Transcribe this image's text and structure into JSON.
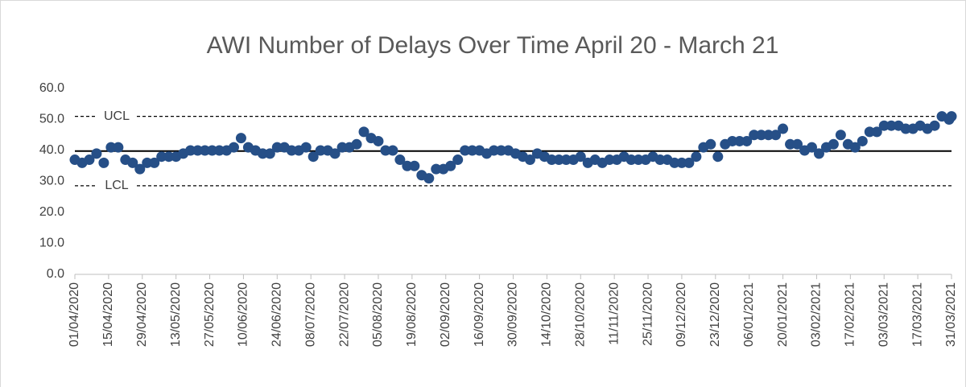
{
  "chart_data": {
    "type": "scatter",
    "title": "AWI Number of Delays Over Time April 20 - March 21",
    "color": "#264f87",
    "x": [
      "01/04/2020",
      "04/04/2020",
      "07/04/2020",
      "10/04/2020",
      "13/04/2020",
      "16/04/2020",
      "19/04/2020",
      "22/04/2020",
      "25/04/2020",
      "28/04/2020",
      "01/05/2020",
      "04/05/2020",
      "07/05/2020",
      "10/05/2020",
      "13/05/2020",
      "16/05/2020",
      "19/05/2020",
      "22/05/2020",
      "25/05/2020",
      "28/05/2020",
      "31/05/2020",
      "03/06/2020",
      "06/06/2020",
      "09/06/2020",
      "12/06/2020",
      "15/06/2020",
      "18/06/2020",
      "21/06/2020",
      "24/06/2020",
      "27/06/2020",
      "30/06/2020",
      "03/07/2020",
      "06/07/2020",
      "09/07/2020",
      "12/07/2020",
      "15/07/2020",
      "18/07/2020",
      "21/07/2020",
      "24/07/2020",
      "27/07/2020",
      "30/07/2020",
      "02/08/2020",
      "05/08/2020",
      "08/08/2020",
      "11/08/2020",
      "14/08/2020",
      "17/08/2020",
      "20/08/2020",
      "23/08/2020",
      "26/08/2020",
      "29/08/2020",
      "01/09/2020",
      "04/09/2020",
      "07/09/2020",
      "10/09/2020",
      "13/09/2020",
      "16/09/2020",
      "19/09/2020",
      "22/09/2020",
      "25/09/2020",
      "28/09/2020",
      "01/10/2020",
      "04/10/2020",
      "07/10/2020",
      "10/10/2020",
      "13/10/2020",
      "16/10/2020",
      "19/10/2020",
      "22/10/2020",
      "25/10/2020",
      "28/10/2020",
      "31/10/2020",
      "03/11/2020",
      "06/11/2020",
      "09/11/2020",
      "12/11/2020",
      "15/11/2020",
      "18/11/2020",
      "21/11/2020",
      "24/11/2020",
      "27/11/2020",
      "30/11/2020",
      "03/12/2020",
      "06/12/2020",
      "09/12/2020",
      "12/12/2020",
      "15/12/2020",
      "18/12/2020",
      "21/12/2020",
      "24/12/2020",
      "27/12/2020",
      "30/12/2020",
      "02/01/2021",
      "05/01/2021",
      "08/01/2021",
      "11/01/2021",
      "14/01/2021",
      "17/01/2021",
      "20/01/2021",
      "23/01/2021",
      "26/01/2021",
      "29/01/2021",
      "01/02/2021",
      "04/02/2021",
      "07/02/2021",
      "10/02/2021",
      "13/02/2021",
      "16/02/2021",
      "19/02/2021",
      "22/02/2021",
      "25/02/2021",
      "28/02/2021",
      "03/03/2021",
      "06/03/2021",
      "09/03/2021",
      "12/03/2021",
      "15/03/2021",
      "18/03/2021",
      "21/03/2021",
      "24/03/2021",
      "27/03/2021",
      "30/03/2021",
      "31/03/2021"
    ],
    "values": [
      37,
      36,
      37,
      39,
      36,
      41,
      41,
      37,
      36,
      34,
      36,
      36,
      38,
      38,
      38,
      39,
      40,
      40,
      40,
      40,
      40,
      40,
      41,
      44,
      41,
      40,
      39,
      39,
      41,
      41,
      40,
      40,
      41,
      38,
      40,
      40,
      39,
      41,
      41,
      42,
      46,
      44,
      43,
      40,
      40,
      37,
      35,
      35,
      32,
      31,
      34,
      34,
      35,
      37,
      40,
      40,
      40,
      39,
      40,
      40,
      40,
      39,
      38,
      37,
      39,
      38,
      37,
      37,
      37,
      37,
      38,
      36,
      37,
      36,
      37,
      37,
      38,
      37,
      37,
      37,
      38,
      37,
      37,
      36,
      36,
      36,
      38,
      41,
      42,
      38,
      42,
      43,
      43,
      43,
      45,
      45,
      45,
      45,
      47,
      42,
      42,
      40,
      41,
      39,
      41,
      42,
      45,
      42,
      41,
      43,
      46,
      46,
      48,
      48,
      48,
      47,
      47,
      48,
      47,
      48,
      51,
      50,
      51
    ],
    "xlim": [
      "01/04/2020",
      "31/03/2021"
    ],
    "xticks": [
      "01/04/2020",
      "15/04/2020",
      "29/04/2020",
      "13/05/2020",
      "27/05/2020",
      "10/06/2020",
      "24/06/2020",
      "08/07/2020",
      "22/07/2020",
      "05/08/2020",
      "19/08/2020",
      "02/09/2020",
      "16/09/2020",
      "30/09/2020",
      "14/10/2020",
      "28/10/2020",
      "11/11/2020",
      "25/11/2020",
      "09/12/2020",
      "23/12/2020",
      "06/01/2021",
      "20/01/2021",
      "03/02/2021",
      "17/02/2021",
      "03/03/2021",
      "17/03/2021",
      "31/03/2021"
    ],
    "ylim": [
      0,
      60
    ],
    "yticks": [
      {
        "value": 0,
        "label": "0.0"
      },
      {
        "value": 10,
        "label": "10.0"
      },
      {
        "value": 20,
        "label": "20.0"
      },
      {
        "value": 30,
        "label": "30.0"
      },
      {
        "value": 40,
        "label": "40.0"
      },
      {
        "value": 50,
        "label": "50.0"
      },
      {
        "value": 60,
        "label": "60.0"
      }
    ],
    "reference_lines": [
      {
        "label": "UCL",
        "value": 51.0,
        "style": "dashed"
      },
      {
        "value": 39.8,
        "style": "solid"
      },
      {
        "label": "LCL",
        "value": 28.6,
        "style": "dashed"
      }
    ]
  }
}
